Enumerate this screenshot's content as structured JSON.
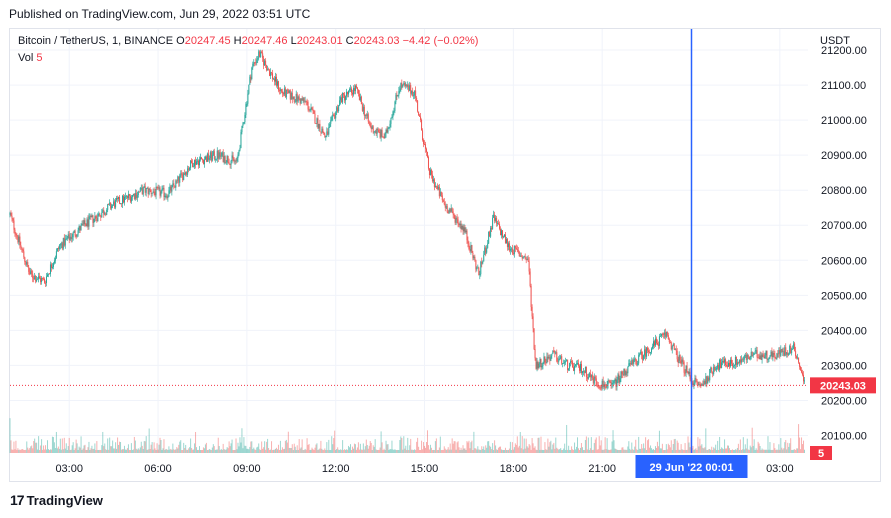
{
  "published": "Published on TradingView.com, Jun 29, 2022 03:51 UTC",
  "legend": {
    "symbol": "Bitcoin / TetherUS, 1, BINANCE",
    "o_label": "O",
    "o_value": "20247.45",
    "h_label": "H",
    "h_value": "20247.46",
    "l_label": "L",
    "l_value": "20243.01",
    "c_label": "C",
    "c_value": "20243.03",
    "change": "−4.42 (−0.02%)",
    "vol_label": "Vol",
    "vol_value": "5"
  },
  "currency": "USDT",
  "price_badge": "20243.03",
  "volume_badge": "5",
  "crosshair_label": "29 Jun '22   00:01",
  "footer": {
    "brand": "TradingView",
    "logo_mark": "17"
  },
  "colors": {
    "up": "#26a69a",
    "down": "#ef5350",
    "crosshair": "#2962ff",
    "last_price": "#f23645"
  },
  "chart_data": {
    "type": "candlestick",
    "timeframe": "1 minute",
    "y_ticks": [
      "21200.00",
      "21100.00",
      "21000.00",
      "20900.00",
      "20800.00",
      "20700.00",
      "20600.00",
      "20500.00",
      "20400.00",
      "20300.00",
      "20200.00",
      "20100.00"
    ],
    "ylim": [
      20050,
      21260
    ],
    "x_ticks": [
      "03:00",
      "06:00",
      "09:00",
      "12:00",
      "15:00",
      "18:00",
      "21:00",
      "03:00"
    ],
    "last_price": 20243.03,
    "crosshair_time": "29 Jun '22 00:01",
    "price_path": [
      [
        "01:00",
        20730
      ],
      [
        "01:40",
        20560
      ],
      [
        "02:10",
        20540
      ],
      [
        "02:40",
        20640
      ],
      [
        "03:30",
        20700
      ],
      [
        "04:30",
        20760
      ],
      [
        "05:30",
        20800
      ],
      [
        "06:20",
        20790
      ],
      [
        "07:10",
        20880
      ],
      [
        "08:00",
        20900
      ],
      [
        "08:40",
        20880
      ],
      [
        "09:10",
        21150
      ],
      [
        "09:25",
        21190
      ],
      [
        "10:10",
        21080
      ],
      [
        "11:00",
        21050
      ],
      [
        "11:40",
        20950
      ],
      [
        "12:10",
        21060
      ],
      [
        "12:40",
        21090
      ],
      [
        "13:10",
        20980
      ],
      [
        "13:40",
        20950
      ],
      [
        "14:10",
        21100
      ],
      [
        "14:40",
        21080
      ],
      [
        "15:10",
        20850
      ],
      [
        "15:40",
        20760
      ],
      [
        "16:20",
        20690
      ],
      [
        "16:50",
        20560
      ],
      [
        "17:20",
        20720
      ],
      [
        "17:50",
        20640
      ],
      [
        "18:30",
        20600
      ],
      [
        "18:45",
        20300
      ],
      [
        "19:20",
        20330
      ],
      [
        "19:50",
        20300
      ],
      [
        "20:20",
        20290
      ],
      [
        "20:50",
        20250
      ],
      [
        "21:20",
        20240
      ],
      [
        "21:50",
        20290
      ],
      [
        "22:30",
        20340
      ],
      [
        "23:10",
        20390
      ],
      [
        "23:30",
        20330
      ],
      [
        "00:01",
        20260
      ],
      [
        "00:20",
        20240
      ],
      [
        "00:50",
        20300
      ],
      [
        "01:30",
        20310
      ],
      [
        "02:10",
        20330
      ],
      [
        "02:50",
        20330
      ],
      [
        "03:30",
        20350
      ],
      [
        "03:51",
        20243
      ]
    ]
  }
}
